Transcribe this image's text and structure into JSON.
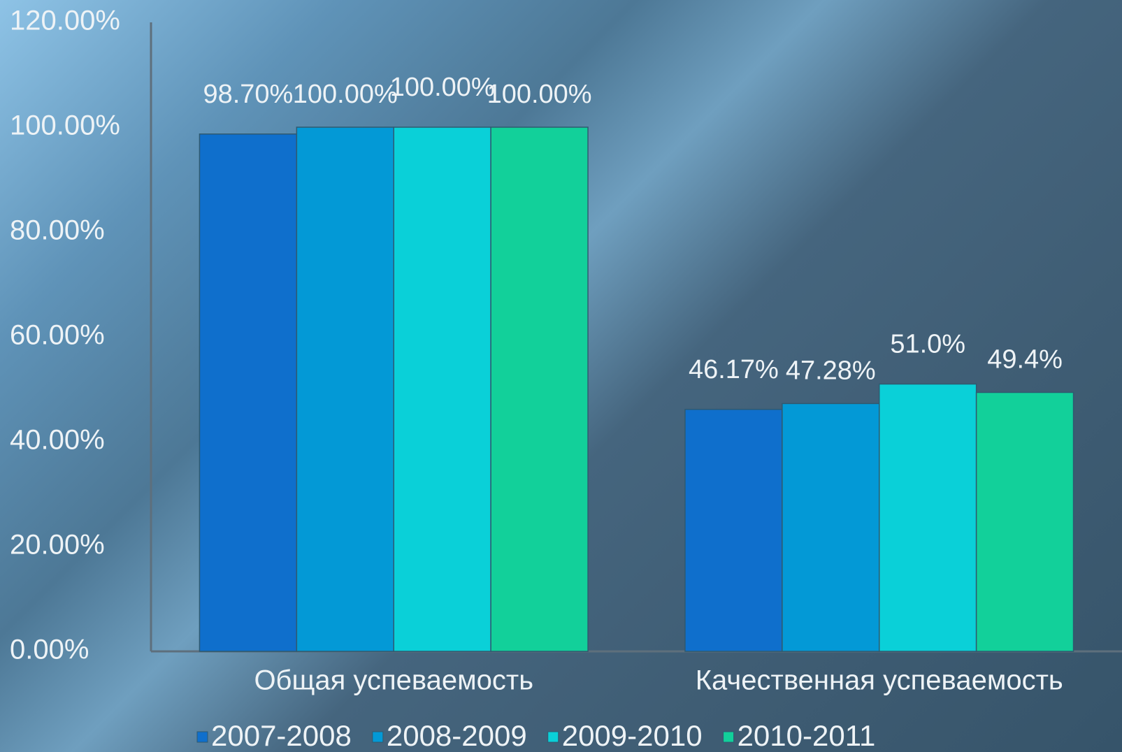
{
  "chart_data": {
    "type": "bar",
    "categories": [
      "Общая успеваемость",
      "Качественная успеваемость"
    ],
    "series": [
      {
        "name": "2007-2008",
        "color": "#0f6fcc",
        "values": [
          98.7,
          46.17
        ],
        "value_labels": [
          "98.70%",
          "46.17%"
        ]
      },
      {
        "name": "2008-2009",
        "color": "#0399d6",
        "values": [
          100,
          47.28
        ],
        "value_labels": [
          "100.00%",
          "47.28%"
        ]
      },
      {
        "name": "2009-2010",
        "color": "#0ad0d8",
        "values": [
          100,
          51.0
        ],
        "value_labels": [
          "100.00%",
          "51.0%"
        ]
      },
      {
        "name": "2010-2011",
        "color": "#12d09a",
        "values": [
          100,
          49.4
        ],
        "value_labels": [
          "100.00%",
          "49.4%"
        ]
      }
    ],
    "ylim": [
      0,
      120
    ],
    "yticks": [
      {
        "value": 0,
        "label": "0.00%"
      },
      {
        "value": 20,
        "label": "20.00%"
      },
      {
        "value": 40,
        "label": "40.00%"
      },
      {
        "value": 60,
        "label": "60.00%"
      },
      {
        "value": 80,
        "label": "80.00%"
      },
      {
        "value": 100,
        "label": "100.00%"
      },
      {
        "value": 120,
        "label": "120.00%"
      }
    ],
    "legend": "bottom"
  }
}
